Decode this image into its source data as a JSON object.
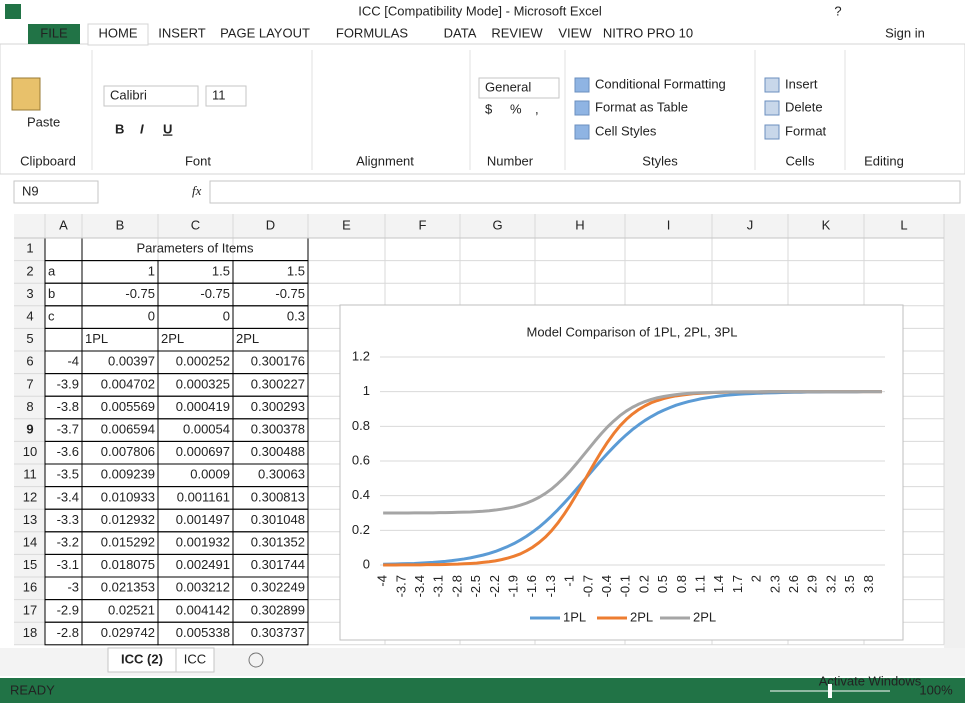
{
  "window": {
    "title": "ICC  [Compatibility Mode] - Microsoft Excel",
    "help": "?",
    "sign_in": "Sign in"
  },
  "ribbon": {
    "tabs": [
      "FILE",
      "HOME",
      "INSERT",
      "PAGE LAYOUT",
      "FORMULAS",
      "DATA",
      "REVIEW",
      "VIEW",
      "NITRO PRO 10"
    ],
    "groups": [
      {
        "label": "Clipboard",
        "items": [
          "Paste"
        ]
      },
      {
        "label": "Font",
        "items": [
          "Calibri",
          "11",
          "B",
          "I",
          "U"
        ]
      },
      {
        "label": "Alignment",
        "items": []
      },
      {
        "label": "Number",
        "items": [
          "General",
          "$",
          "%",
          ","
        ]
      },
      {
        "label": "Styles",
        "items": [
          "Conditional Formatting",
          "Format as Table",
          "Cell Styles"
        ]
      },
      {
        "label": "Cells",
        "items": [
          "Insert",
          "Delete",
          "Format"
        ]
      },
      {
        "label": "Editing",
        "items": []
      }
    ]
  },
  "formula_bar": {
    "name_box": "N9",
    "fx": "fx"
  },
  "sheet": {
    "columns": [
      "A",
      "B",
      "C",
      "D",
      "E",
      "F",
      "G",
      "H",
      "I",
      "J",
      "K",
      "L"
    ],
    "rows": [
      1,
      2,
      3,
      4,
      5,
      6,
      7,
      8,
      9,
      10,
      11,
      12,
      13,
      14,
      15,
      16,
      17,
      18
    ],
    "cells": [
      [
        null,
        "Parameters of Items",
        null,
        null
      ],
      [
        "a",
        1,
        1.5,
        1.5
      ],
      [
        "b",
        -0.75,
        -0.75,
        -0.75
      ],
      [
        "c",
        0,
        0,
        0.3
      ],
      [
        null,
        "1PL",
        "2PL",
        "2PL"
      ],
      [
        -4,
        0.00397,
        0.000252,
        0.300176
      ],
      [
        -3.9,
        0.004702,
        0.000325,
        0.300227
      ],
      [
        -3.8,
        0.005569,
        0.000419,
        0.300293
      ],
      [
        -3.7,
        0.006594,
        0.00054,
        0.300378
      ],
      [
        -3.6,
        0.007806,
        0.000697,
        0.300488
      ],
      [
        -3.5,
        0.009239,
        0.0009,
        0.30063
      ],
      [
        -3.4,
        0.010933,
        0.001161,
        0.300813
      ],
      [
        -3.3,
        0.012932,
        0.001497,
        0.301048
      ],
      [
        -3.2,
        0.015292,
        0.001932,
        0.301352
      ],
      [
        -3.1,
        0.018075,
        0.002491,
        0.301744
      ],
      [
        -3,
        0.021353,
        0.003212,
        0.302249
      ],
      [
        -2.9,
        0.02521,
        0.004142,
        0.302899
      ],
      [
        -2.8,
        0.029742,
        0.005338,
        0.303737
      ]
    ]
  },
  "chart_data": {
    "type": "line",
    "title": "Model Comparison of 1PL, 2PL, 3PL",
    "categories": [
      "-4",
      null,
      null,
      "-3.7",
      null,
      null,
      "-3.4",
      null,
      null,
      "-3.1",
      null,
      null,
      "-2.8",
      null,
      null,
      "-2.5",
      null,
      null,
      "-2.2",
      null,
      null,
      "-1.9",
      null,
      null,
      "-1.6",
      null,
      null,
      "-1.3",
      null,
      null,
      "-1",
      null,
      null,
      "-0.7",
      null,
      null,
      "-0.4",
      null,
      null,
      "-0.1",
      null,
      null,
      "0.2",
      null,
      null,
      "0.5",
      null,
      null,
      "0.8",
      null,
      null,
      "1.1",
      null,
      null,
      "1.4",
      null,
      null,
      "1.7",
      null,
      null,
      "2",
      null,
      null,
      "2.3",
      null,
      null,
      "2.6",
      null,
      null,
      "2.9",
      null,
      null,
      "3.2",
      null,
      null,
      "3.5",
      null,
      null,
      "3.8",
      null,
      null
    ],
    "series": [
      {
        "name": "1PL",
        "color": "#5b9bd5",
        "values": [
          0.004,
          0.005,
          0.006,
          0.007,
          0.008,
          0.009,
          0.011,
          0.013,
          0.015,
          0.018,
          0.021,
          0.025,
          0.03,
          0.035,
          0.041,
          0.049,
          0.057,
          0.067,
          0.078,
          0.092,
          0.107,
          0.124,
          0.144,
          0.166,
          0.191,
          0.218,
          0.249,
          0.282,
          0.318,
          0.356,
          0.395,
          0.437,
          0.479,
          0.521,
          0.563,
          0.605,
          0.644,
          0.682,
          0.718,
          0.751,
          0.782,
          0.809,
          0.834,
          0.856,
          0.876,
          0.893,
          0.908,
          0.922,
          0.933,
          0.943,
          0.951,
          0.959,
          0.965,
          0.97,
          0.975,
          0.979,
          0.982,
          0.985,
          0.987,
          0.989,
          0.991,
          0.992,
          0.993,
          0.994,
          0.995,
          0.996,
          0.997,
          0.997,
          0.998,
          0.998,
          0.998,
          0.999,
          0.999,
          0.999,
          0.999,
          0.999,
          0.999,
          1,
          1,
          1,
          1
        ]
      },
      {
        "name": "2PL",
        "color": "#ed7d31",
        "values": [
          0,
          0,
          0,
          0.001,
          0.001,
          0.001,
          0.001,
          0.002,
          0.002,
          0.002,
          0.003,
          0.004,
          0.005,
          0.007,
          0.009,
          0.011,
          0.015,
          0.019,
          0.024,
          0.031,
          0.04,
          0.051,
          0.064,
          0.082,
          0.103,
          0.129,
          0.16,
          0.197,
          0.241,
          0.291,
          0.346,
          0.406,
          0.468,
          0.532,
          0.594,
          0.654,
          0.709,
          0.759,
          0.803,
          0.84,
          0.871,
          0.897,
          0.918,
          0.936,
          0.949,
          0.96,
          0.969,
          0.976,
          0.981,
          0.985,
          0.989,
          0.991,
          0.993,
          0.995,
          0.996,
          0.997,
          0.998,
          0.998,
          0.999,
          0.999,
          0.999,
          0.999,
          1,
          1,
          1,
          1,
          1,
          1,
          1,
          1,
          1,
          1,
          1,
          1,
          1,
          1,
          1,
          1,
          1,
          1,
          1
        ]
      },
      {
        "name": "2PL",
        "color": "#a5a5a5",
        "values": [
          0.3,
          0.3,
          0.3,
          0.3,
          0.3,
          0.301,
          0.301,
          0.301,
          0.301,
          0.302,
          0.302,
          0.303,
          0.304,
          0.305,
          0.306,
          0.308,
          0.31,
          0.313,
          0.317,
          0.322,
          0.328,
          0.335,
          0.345,
          0.357,
          0.372,
          0.39,
          0.412,
          0.438,
          0.469,
          0.503,
          0.542,
          0.584,
          0.628,
          0.672,
          0.716,
          0.758,
          0.797,
          0.831,
          0.862,
          0.888,
          0.91,
          0.928,
          0.943,
          0.955,
          0.965,
          0.972,
          0.978,
          0.983,
          0.987,
          0.99,
          0.992,
          0.994,
          0.995,
          0.996,
          0.997,
          0.998,
          0.998,
          0.999,
          0.999,
          0.999,
          0.999,
          1,
          1,
          1,
          1,
          1,
          1,
          1,
          1,
          1,
          1,
          1,
          1,
          1,
          1,
          1,
          1,
          1,
          1,
          1,
          1
        ]
      }
    ],
    "ylim": [
      0,
      1.2
    ],
    "yticks": [
      0,
      0.2,
      0.4,
      0.6,
      0.8,
      1,
      1.2
    ],
    "grid": true,
    "legend": "bottom"
  },
  "sheet_tabs": [
    "ICC (2)",
    "ICC"
  ],
  "status": {
    "mode": "READY",
    "zoom": "100%",
    "watermark": "Activate Windows"
  }
}
